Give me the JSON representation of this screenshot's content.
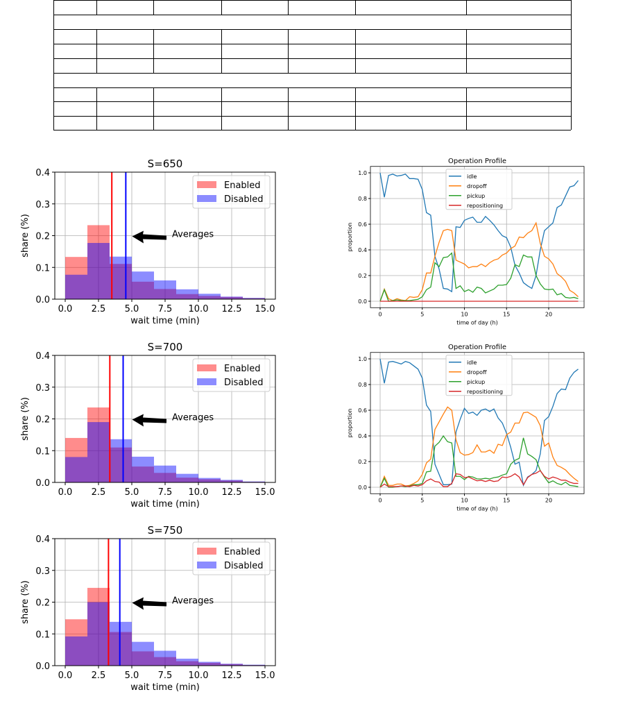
{
  "chart_data": [
    {
      "type": "bar",
      "title": "S=650",
      "xlabel": "wait time (min)",
      "ylabel": "share (%)",
      "xlim": [
        0,
        15
      ],
      "ylim": [
        0,
        0.4
      ],
      "xticks": [
        "0.0",
        "2.5",
        "5.0",
        "7.5",
        "10.0",
        "12.5",
        "15.0"
      ],
      "yticks": [
        "0.0",
        "0.1",
        "0.2",
        "0.3",
        "0.4"
      ],
      "bin_edges": [
        0,
        1.667,
        3.333,
        5,
        6.667,
        8.333,
        10,
        11.667,
        13.333,
        15
      ],
      "series": [
        {
          "name": "Enabled",
          "color": "#ff0000",
          "values": [
            0.133,
            0.233,
            0.111,
            0.055,
            0.032,
            0.016,
            0.01,
            0.007,
            0.003
          ],
          "average": 3.5
        },
        {
          "name": "Disabled",
          "color": "#0000ff",
          "values": [
            0.077,
            0.177,
            0.134,
            0.087,
            0.059,
            0.031,
            0.017,
            0.008,
            0.004
          ],
          "average": 4.55
        }
      ],
      "annotation": "Averages",
      "legend": "top-right",
      "grid": true
    },
    {
      "type": "bar",
      "title": "S=700",
      "xlabel": "wait time (min)",
      "ylabel": "share (%)",
      "xlim": [
        0,
        15
      ],
      "ylim": [
        0,
        0.4
      ],
      "xticks": [
        "0.0",
        "2.5",
        "5.0",
        "7.5",
        "10.0",
        "12.5",
        "15.0"
      ],
      "yticks": [
        "0.0",
        "0.1",
        "0.2",
        "0.3",
        "0.4"
      ],
      "bin_edges": [
        0,
        1.667,
        3.333,
        5,
        6.667,
        8.333,
        10,
        11.667,
        13.333,
        15
      ],
      "series": [
        {
          "name": "Enabled",
          "color": "#ff0000",
          "values": [
            0.14,
            0.236,
            0.11,
            0.05,
            0.03,
            0.015,
            0.01,
            0.006,
            0.002
          ],
          "average": 3.35
        },
        {
          "name": "Disabled",
          "color": "#0000ff",
          "values": [
            0.08,
            0.19,
            0.136,
            0.081,
            0.053,
            0.027,
            0.014,
            0.008,
            0.003
          ],
          "average": 4.35
        }
      ],
      "annotation": "Averages",
      "legend": "top-right",
      "grid": true
    },
    {
      "type": "bar",
      "title": "S=750",
      "xlabel": "wait time (min)",
      "ylabel": "share (%)",
      "xlim": [
        0,
        15
      ],
      "ylim": [
        0,
        0.4
      ],
      "xticks": [
        "0.0",
        "2.5",
        "5.0",
        "7.5",
        "10.0",
        "12.5",
        "15.0"
      ],
      "yticks": [
        "0.0",
        "0.1",
        "0.2",
        "0.3",
        "0.4"
      ],
      "bin_edges": [
        0,
        1.667,
        3.333,
        5,
        6.667,
        8.333,
        10,
        11.667,
        13.333,
        15
      ],
      "series": [
        {
          "name": "Enabled",
          "color": "#ff0000",
          "values": [
            0.146,
            0.245,
            0.106,
            0.045,
            0.027,
            0.014,
            0.009,
            0.005,
            0.002
          ],
          "average": 3.25
        },
        {
          "name": "Disabled",
          "color": "#0000ff",
          "values": [
            0.092,
            0.2,
            0.138,
            0.075,
            0.047,
            0.022,
            0.012,
            0.006,
            0.003
          ],
          "average": 4.1
        }
      ],
      "annotation": "Averages",
      "legend": "top-right",
      "grid": true
    },
    {
      "type": "line",
      "title": "Operation Profile",
      "xlabel": "time of day (h)",
      "ylabel": "proportion",
      "xlim": [
        -1.2,
        24.7
      ],
      "ylim": [
        -0.05,
        1.05
      ],
      "xticks": [
        "0",
        "5",
        "10",
        "15",
        "20"
      ],
      "yticks": [
        "0.0",
        "0.2",
        "0.4",
        "0.6",
        "0.8",
        "1.0"
      ],
      "x_start": 0,
      "x_step": 0.5,
      "series": [
        {
          "name": "idle",
          "color": "#1f77b4",
          "values": [
            1.0,
            0.81,
            0.98,
            0.99,
            0.975,
            0.98,
            0.99,
            0.955,
            0.955,
            0.95,
            0.87,
            0.69,
            0.67,
            0.35,
            0.25,
            0.1,
            0.095,
            0.075,
            0.58,
            0.575,
            0.63,
            0.645,
            0.655,
            0.615,
            0.615,
            0.66,
            0.63,
            0.595,
            0.55,
            0.51,
            0.495,
            0.42,
            0.28,
            0.22,
            0.145,
            0.12,
            0.1,
            0.2,
            0.4,
            0.55,
            0.58,
            0.61,
            0.73,
            0.75,
            0.82,
            0.89,
            0.9,
            0.94
          ]
        },
        {
          "name": "dropoff",
          "color": "#ff7f0e",
          "values": [
            0,
            0.095,
            0.02,
            0.005,
            0.02,
            0.01,
            0.005,
            0.035,
            0.03,
            0.035,
            0.09,
            0.22,
            0.22,
            0.35,
            0.46,
            0.55,
            0.56,
            0.55,
            0.32,
            0.305,
            0.29,
            0.26,
            0.27,
            0.27,
            0.29,
            0.27,
            0.3,
            0.32,
            0.33,
            0.36,
            0.375,
            0.41,
            0.43,
            0.5,
            0.495,
            0.53,
            0.55,
            0.61,
            0.45,
            0.35,
            0.33,
            0.29,
            0.215,
            0.19,
            0.155,
            0.085,
            0.065,
            0.035
          ]
        },
        {
          "name": "pickup",
          "color": "#2ca02c",
          "values": [
            0,
            0.09,
            0,
            0.005,
            0.01,
            0.005,
            0.005,
            0.005,
            0.01,
            0.015,
            0.035,
            0.09,
            0.11,
            0.3,
            0.27,
            0.34,
            0.345,
            0.375,
            0.1,
            0.12,
            0.075,
            0.09,
            0.07,
            0.11,
            0.1,
            0.065,
            0.08,
            0.095,
            0.125,
            0.125,
            0.13,
            0.18,
            0.285,
            0.27,
            0.36,
            0.345,
            0.345,
            0.2,
            0.135,
            0.095,
            0.09,
            0.095,
            0.05,
            0.06,
            0.03,
            0.025,
            0.03,
            0.02
          ]
        },
        {
          "name": "repositioning",
          "color": "#d62728",
          "values": [
            0,
            0,
            0,
            0,
            0,
            0,
            0,
            0,
            0,
            0,
            0,
            0,
            0,
            0,
            0,
            0,
            0,
            0,
            0,
            0,
            0,
            0,
            0,
            0,
            0,
            0,
            0,
            0,
            0,
            0,
            0,
            0,
            0,
            0,
            0,
            0,
            0,
            0,
            0,
            0,
            0,
            0,
            0,
            0,
            0,
            0,
            0,
            0
          ]
        }
      ],
      "legend": "top-center",
      "grid": true
    },
    {
      "type": "line",
      "title": "Operation Profile",
      "xlabel": "time of day (h)",
      "ylabel": "proportion",
      "xlim": [
        -1.2,
        24.7
      ],
      "ylim": [
        -0.05,
        1.05
      ],
      "xticks": [
        "0",
        "5",
        "10",
        "15",
        "20"
      ],
      "yticks": [
        "0.0",
        "0.2",
        "0.4",
        "0.6",
        "0.8",
        "1.0"
      ],
      "x_start": 0,
      "x_step": 0.5,
      "series": [
        {
          "name": "idle",
          "color": "#1f77b4",
          "values": [
            1.0,
            0.81,
            0.975,
            0.98,
            0.97,
            0.96,
            0.98,
            0.97,
            0.945,
            0.92,
            0.85,
            0.64,
            0.59,
            0.18,
            0.1,
            0.02,
            0.02,
            0.025,
            0.43,
            0.53,
            0.615,
            0.575,
            0.585,
            0.56,
            0.6,
            0.61,
            0.59,
            0.61,
            0.54,
            0.5,
            0.42,
            0.31,
            0.18,
            0.195,
            0.015,
            0.08,
            0.1,
            0.13,
            0.26,
            0.52,
            0.55,
            0.63,
            0.73,
            0.765,
            0.76,
            0.85,
            0.895,
            0.92
          ]
        },
        {
          "name": "dropoff",
          "color": "#ff7f0e",
          "values": [
            0,
            0.085,
            0.015,
            0.015,
            0.025,
            0.025,
            0.01,
            0.015,
            0.03,
            0.05,
            0.1,
            0.19,
            0.22,
            0.45,
            0.51,
            0.57,
            0.625,
            0.6,
            0.37,
            0.27,
            0.25,
            0.255,
            0.27,
            0.33,
            0.275,
            0.275,
            0.29,
            0.265,
            0.335,
            0.325,
            0.41,
            0.43,
            0.5,
            0.5,
            0.58,
            0.585,
            0.565,
            0.545,
            0.48,
            0.32,
            0.345,
            0.235,
            0.17,
            0.155,
            0.135,
            0.1,
            0.07,
            0.045
          ]
        },
        {
          "name": "pickup",
          "color": "#2ca02c",
          "values": [
            0,
            0.07,
            0,
            0,
            0.005,
            0.01,
            0.005,
            0.01,
            0.02,
            0.02,
            0.03,
            0.12,
            0.125,
            0.32,
            0.35,
            0.4,
            0.355,
            0.345,
            0.085,
            0.085,
            0.06,
            0.085,
            0.08,
            0.065,
            0.065,
            0.07,
            0.065,
            0.075,
            0.08,
            0.095,
            0.105,
            0.18,
            0.21,
            0.225,
            0.385,
            0.26,
            0.24,
            0.215,
            0.13,
            0.08,
            0.035,
            0.05,
            0.03,
            0.02,
            0.04,
            0.015,
            0.01,
            0.005
          ]
        },
        {
          "name": "repositioning",
          "color": "#d62728",
          "values": [
            0,
            0.025,
            0.005,
            0.005,
            0.005,
            0.01,
            0.01,
            0.005,
            0.015,
            0.01,
            0.02,
            0.05,
            0.065,
            0.045,
            0.04,
            0.005,
            0.005,
            0.03,
            0.105,
            0.1,
            0.075,
            0.08,
            0.065,
            0.05,
            0.055,
            0.045,
            0.055,
            0.045,
            0.05,
            0.08,
            0.075,
            0.085,
            0.105,
            0.08,
            0.02,
            0.075,
            0.1,
            0.11,
            0.13,
            0.085,
            0.065,
            0.08,
            0.07,
            0.055,
            0.055,
            0.04,
            0.03,
            0.03
          ]
        }
      ],
      "legend": "top-center",
      "grid": true
    }
  ]
}
